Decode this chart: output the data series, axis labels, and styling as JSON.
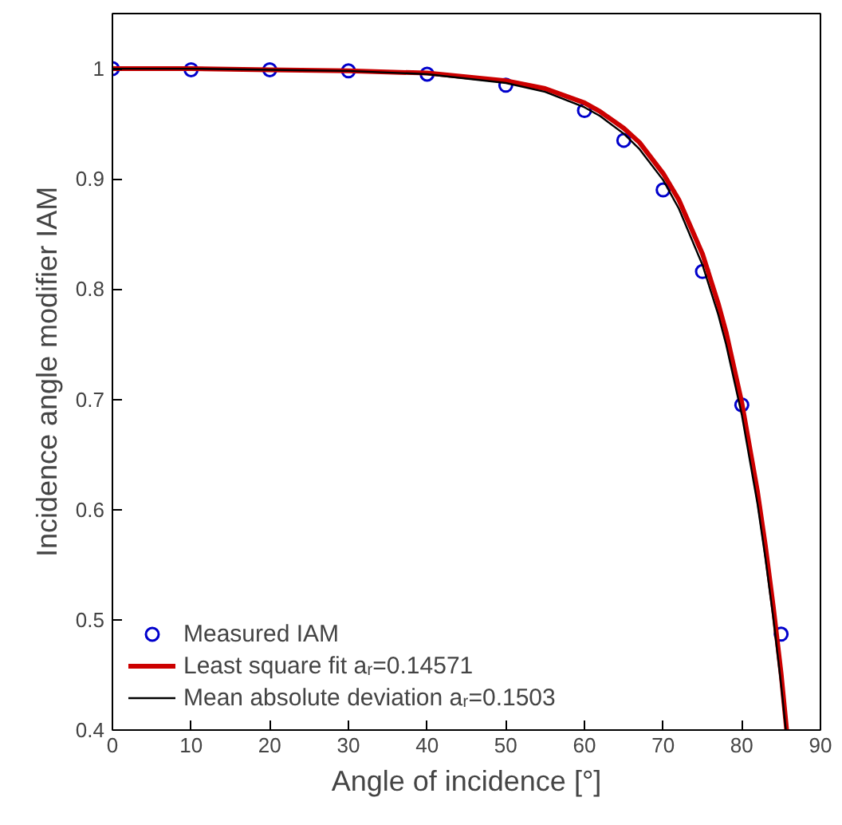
{
  "chart_data": {
    "type": "line",
    "xlabel": "Angle of incidence [°]",
    "ylabel": "Incidence angle modifier IAM",
    "xlim": [
      0,
      90
    ],
    "ylim": [
      0.4,
      1.05
    ],
    "xticks": [
      0,
      10,
      20,
      30,
      40,
      50,
      60,
      70,
      80,
      90
    ],
    "yticks": [
      0.4,
      0.5,
      0.6,
      0.7,
      0.8,
      0.9,
      1
    ],
    "grid": false,
    "legend": "bottom left",
    "series": [
      {
        "name": "Measured IAM",
        "type": "scatter",
        "marker": "circle",
        "color": "#0000cc",
        "x": [
          0,
          10,
          20,
          30,
          40,
          50,
          60,
          65,
          70,
          75,
          80,
          85
        ],
        "values": [
          1.0,
          0.999,
          0.999,
          0.998,
          0.995,
          0.985,
          0.962,
          0.935,
          0.89,
          0.816,
          0.695,
          0.487
        ]
      },
      {
        "name": "Least square fit aᵣ=0.14571",
        "color": "#cc0000",
        "x": [
          0,
          10,
          20,
          30,
          40,
          50,
          55,
          60,
          62,
          65,
          67,
          70,
          72,
          75,
          77,
          78,
          80,
          82,
          83,
          84,
          85,
          85.7
        ],
        "values": [
          1.0,
          1.0,
          0.999,
          0.998,
          0.996,
          0.989,
          0.982,
          0.969,
          0.961,
          0.946,
          0.933,
          0.905,
          0.881,
          0.832,
          0.787,
          0.761,
          0.697,
          0.616,
          0.567,
          0.512,
          0.451,
          0.4
        ]
      },
      {
        "name": "Mean absolute deviation aᵣ=0.1503",
        "color": "#000000",
        "x": [
          0,
          10,
          20,
          30,
          40,
          50,
          55,
          60,
          62,
          65,
          67,
          70,
          72,
          75,
          77,
          78,
          80,
          82,
          83,
          84,
          85,
          85.6
        ],
        "values": [
          1.0,
          1.0,
          0.999,
          0.998,
          0.995,
          0.987,
          0.979,
          0.965,
          0.957,
          0.941,
          0.927,
          0.899,
          0.873,
          0.822,
          0.777,
          0.75,
          0.686,
          0.605,
          0.556,
          0.502,
          0.441,
          0.4
        ]
      }
    ]
  }
}
